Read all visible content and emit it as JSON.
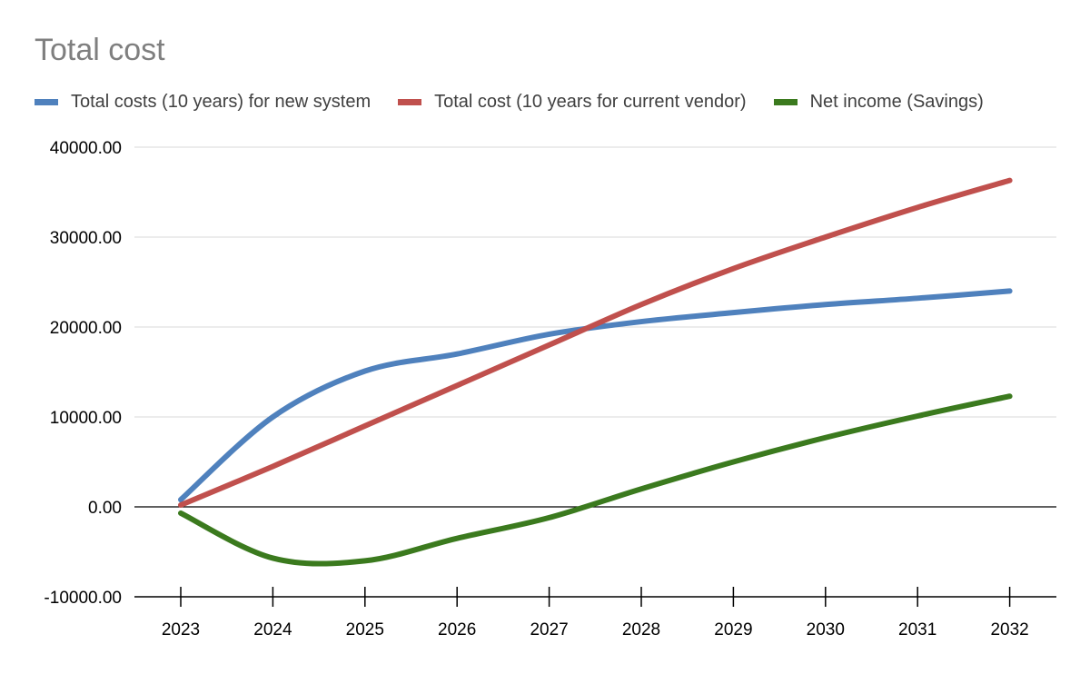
{
  "chart_data": {
    "type": "line",
    "title": "Total cost",
    "xlabel": "",
    "ylabel": "",
    "x": [
      "2023",
      "2024",
      "2025",
      "2026",
      "2027",
      "2028",
      "2029",
      "2030",
      "2031",
      "2032"
    ],
    "ylim": [
      -10000,
      40000
    ],
    "yticks": [
      "40000.00",
      "30000.00",
      "20000.00",
      "10000.00",
      "0.00",
      "-10000.00"
    ],
    "ytick_values": [
      40000,
      30000,
      20000,
      10000,
      0,
      -10000
    ],
    "grid": true,
    "legend_position": "top",
    "series": [
      {
        "name": "Total costs (10 years) for new system",
        "color": "#4f81bd",
        "values": [
          800,
          10000,
          15100,
          17000,
          19200,
          20600,
          21600,
          22500,
          23200,
          24000
        ]
      },
      {
        "name": "Total cost (10 years for current vendor)",
        "color": "#c0504d",
        "values": [
          200,
          4500,
          9000,
          13500,
          18000,
          22500,
          26500,
          30000,
          33300,
          36300
        ]
      },
      {
        "name": "Net income (Savings)",
        "color": "#3b7a1e",
        "values": [
          -700,
          -5700,
          -6000,
          -3500,
          -1200,
          2000,
          5000,
          7700,
          10100,
          12300
        ]
      }
    ]
  }
}
